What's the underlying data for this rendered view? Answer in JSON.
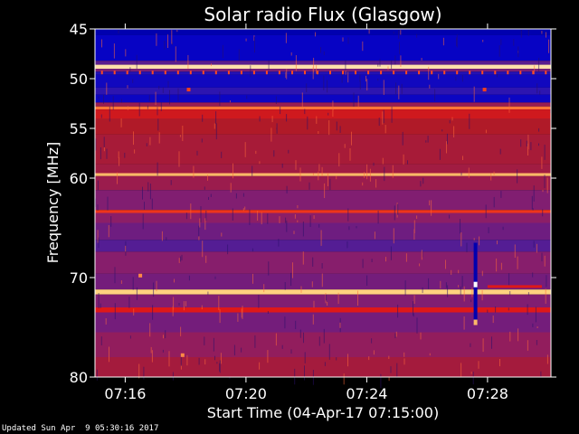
{
  "chart_data": {
    "type": "heatmap",
    "title": "Solar radio Flux (Glasgow)",
    "xlabel": "Start Time (04-Apr-17 07:15:00)",
    "ylabel": "Frequency [MHz]",
    "x_ticks": [
      "07:16",
      "07:20",
      "07:24",
      "07:28"
    ],
    "x_tick_minutes": [
      1,
      5,
      9,
      13
    ],
    "xlim_minutes": [
      0,
      15.1
    ],
    "y_ticks": [
      45,
      50,
      55,
      60,
      70,
      80
    ],
    "ylim_mhz": [
      45,
      80
    ],
    "grid": false,
    "colormap": [
      "#00004a",
      "#0000c8",
      "#3b1ca8",
      "#8a1e6a",
      "#b01a28",
      "#e01818",
      "#ff5a20",
      "#ffd07a",
      "#ffffff"
    ],
    "spectrum_bands": [
      {
        "from": 45.0,
        "to": 45.6,
        "level": 0.1
      },
      {
        "from": 45.6,
        "to": 48.2,
        "level": 0.14
      },
      {
        "from": 48.2,
        "to": 48.6,
        "level": 0.3
      },
      {
        "from": 48.6,
        "to": 49.0,
        "level": 0.92
      },
      {
        "from": 49.0,
        "to": 49.3,
        "level": 0.35
      },
      {
        "from": 49.3,
        "to": 49.6,
        "level": 0.2
      },
      {
        "from": 49.6,
        "to": 50.9,
        "level": 0.16
      },
      {
        "from": 50.9,
        "to": 51.6,
        "level": 0.22
      },
      {
        "from": 51.6,
        "to": 52.4,
        "level": 0.15
      },
      {
        "from": 52.4,
        "to": 52.8,
        "level": 0.42
      },
      {
        "from": 52.8,
        "to": 53.1,
        "level": 0.78
      },
      {
        "from": 53.1,
        "to": 54.0,
        "level": 0.58
      },
      {
        "from": 54.0,
        "to": 55.6,
        "level": 0.5
      },
      {
        "from": 55.6,
        "to": 58.6,
        "level": 0.47
      },
      {
        "from": 58.6,
        "to": 59.5,
        "level": 0.45
      },
      {
        "from": 59.5,
        "to": 59.8,
        "level": 0.85
      },
      {
        "from": 59.8,
        "to": 61.2,
        "level": 0.43
      },
      {
        "from": 61.2,
        "to": 63.2,
        "level": 0.36
      },
      {
        "from": 63.2,
        "to": 63.5,
        "level": 0.68
      },
      {
        "from": 63.5,
        "to": 64.5,
        "level": 0.38
      },
      {
        "from": 64.5,
        "to": 66.2,
        "level": 0.33
      },
      {
        "from": 66.2,
        "to": 67.4,
        "level": 0.29
      },
      {
        "from": 67.4,
        "to": 69.6,
        "level": 0.37
      },
      {
        "from": 69.6,
        "to": 71.2,
        "level": 0.34
      },
      {
        "from": 71.2,
        "to": 71.7,
        "level": 0.88
      },
      {
        "from": 71.7,
        "to": 73.0,
        "level": 0.36
      },
      {
        "from": 73.0,
        "to": 73.5,
        "level": 0.62
      },
      {
        "from": 73.5,
        "to": 75.5,
        "level": 0.34
      },
      {
        "from": 75.5,
        "to": 78.0,
        "level": 0.4
      },
      {
        "from": 78.0,
        "to": 80.0,
        "level": 0.46
      }
    ],
    "features": [
      {
        "type": "vertical-burst",
        "t_minutes": 12.6,
        "f_from": 66.5,
        "f_to": 74.6,
        "level": 0.1
      },
      {
        "type": "hot-pixel",
        "t_minutes": 12.6,
        "f": 70.7,
        "level": 1.0
      },
      {
        "type": "hot-pixel",
        "t_minutes": 12.6,
        "f": 74.5,
        "level": 0.85
      },
      {
        "type": "horizontal-segment",
        "t_from": 13.0,
        "t_to": 14.8,
        "f": 70.9,
        "level": 0.62
      },
      {
        "type": "dot",
        "t_minutes": 3.1,
        "f": 51.1,
        "level": 0.7
      },
      {
        "type": "dot",
        "t_minutes": 12.9,
        "f": 51.1,
        "level": 0.7
      },
      {
        "type": "dot",
        "t_minutes": 1.5,
        "f": 69.8,
        "level": 0.8
      },
      {
        "type": "dot",
        "t_minutes": 2.9,
        "f": 77.8,
        "level": 0.8
      }
    ]
  },
  "footer": {
    "updated_text": "Updated Sun Apr  9 05:30:16 2017"
  }
}
